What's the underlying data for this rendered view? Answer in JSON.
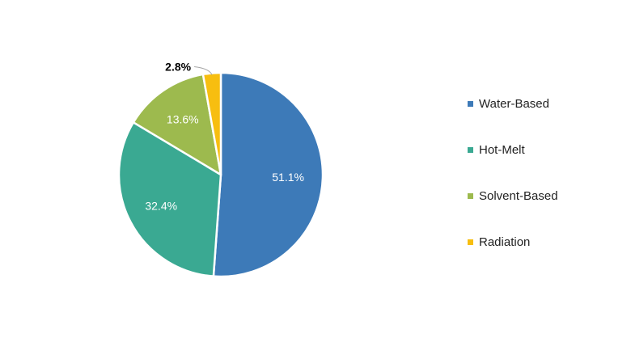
{
  "chart_data": {
    "type": "pie",
    "categories": [
      "Water-Based",
      "Hot-Melt",
      "Solvent-Based",
      "Radiation"
    ],
    "values": [
      51.1,
      32.4,
      13.6,
      2.8
    ],
    "data_labels": [
      "51.1%",
      "32.4%",
      "13.6%",
      "2.8%"
    ],
    "colors": [
      "#3d7ab8",
      "#3aa992",
      "#9dba4e",
      "#f7be10"
    ],
    "legend_position": "right"
  }
}
